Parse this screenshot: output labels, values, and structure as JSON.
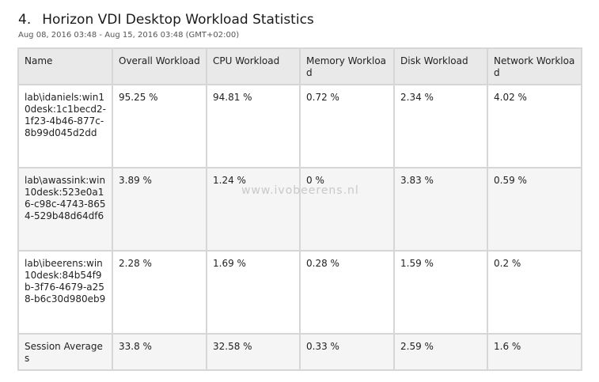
{
  "report": {
    "section_number": "4.",
    "title": "Horizon VDI Desktop Workload Statistics",
    "date_range": "Aug 08, 2016 03:48 - Aug 15, 2016 03:48 (GMT+02:00)"
  },
  "table": {
    "columns": [
      "Name",
      "Overall Workload",
      "CPU Workload",
      "Memory Workload",
      "Disk Workload",
      "Network Workload"
    ],
    "rows": [
      {
        "name": "lab\\idaniels:win10desk:1c1becd2-1f23-4b46-877c-8b99d045d2dd",
        "overall": "95.25 %",
        "cpu": "94.81 %",
        "memory": "0.72 %",
        "disk": "2.34 %",
        "network": "4.02 %"
      },
      {
        "name": "lab\\awassink:win10desk:523e0a16-c98c-4743-8654-529b48d64df6",
        "overall": "3.89 %",
        "cpu": "1.24 %",
        "memory": "0 %",
        "disk": "3.83 %",
        "network": "0.59 %"
      },
      {
        "name": "lab\\ibeerens:win10desk:84b54f9b-3f76-4679-a258-b6c30d980eb9",
        "overall": "2.28 %",
        "cpu": "1.69 %",
        "memory": "0.28 %",
        "disk": "1.59 %",
        "network": "0.2 %"
      },
      {
        "name": "Session Averages",
        "overall": "33.8 %",
        "cpu": "32.58 %",
        "memory": "0.33 %",
        "disk": "2.59 %",
        "network": "1.6 %"
      }
    ]
  },
  "watermark": "www.ivobeerens.nl"
}
